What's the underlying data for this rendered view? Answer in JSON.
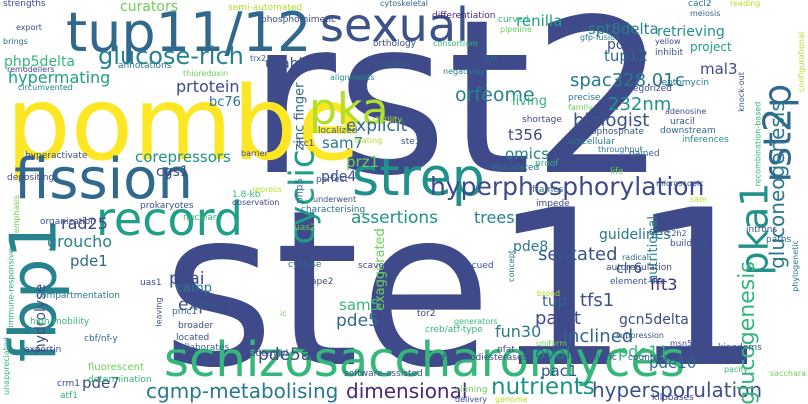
{
  "words": [
    {
      "text": "rst2",
      "color": "#3e4a89"
    },
    {
      "text": "ste11",
      "color": "#3e4a89"
    },
    {
      "text": "pombe",
      "color": "#fde725"
    },
    {
      "text": "fission",
      "color": "#31688e"
    },
    {
      "text": "schizosaccharomyces",
      "color": "#35b779"
    },
    {
      "text": "tup11/12",
      "color": "#31688e"
    },
    {
      "text": "sexual",
      "color": "#3b528b"
    },
    {
      "text": "fbp1",
      "color": "#26828e"
    },
    {
      "text": "strep",
      "color": "#21918c"
    },
    {
      "text": "record",
      "color": "#1f9e89"
    },
    {
      "text": "pka",
      "color": "#b5de2b"
    },
    {
      "text": "pka1",
      "color": "#21918c"
    },
    {
      "text": "rst2p",
      "color": "#31688e"
    },
    {
      "text": "cyclic",
      "color": "#1f9e89"
    },
    {
      "text": "glucose-rich",
      "color": "#26828e"
    },
    {
      "text": "hyperphosphorylation",
      "color": "#3e4a89"
    },
    {
      "text": "cgmp-metabolising",
      "color": "#2a788e"
    },
    {
      "text": "dimensional",
      "color": "#482878"
    },
    {
      "text": "nutrients",
      "color": "#21918c"
    },
    {
      "text": "hypersporulation",
      "color": "#3b528b"
    },
    {
      "text": "gluconeogenesis",
      "color": "#2a788e"
    },
    {
      "text": "glucogenesis",
      "color": "#35b779"
    },
    {
      "text": "orfeome",
      "color": "#26828e"
    },
    {
      "text": "spac328.01c",
      "color": "#2a788e"
    },
    {
      "text": "232nm",
      "color": "#21918c"
    },
    {
      "text": "biologist",
      "color": "#3b528b"
    },
    {
      "text": "hypermating",
      "color": "#1f9e89"
    },
    {
      "text": "prtotein",
      "color": "#3e4a89"
    },
    {
      "text": "curators",
      "color": "#6ece58"
    },
    {
      "text": "renilla",
      "color": "#1f9e89"
    },
    {
      "text": "spt8delta",
      "color": "#26828e"
    },
    {
      "text": "pdes",
      "color": "#3b528b"
    },
    {
      "text": "retrieving",
      "color": "#21918c"
    },
    {
      "text": "project",
      "color": "#1f9e89"
    },
    {
      "text": "tup12",
      "color": "#31688e"
    },
    {
      "text": "mal3",
      "color": "#3e4a89"
    },
    {
      "text": "usable",
      "color": "#3b528b"
    },
    {
      "text": "php5delta",
      "color": "#35b779"
    },
    {
      "text": "bc76",
      "color": "#2a788e"
    },
    {
      "text": "explicit",
      "color": "#31688e"
    },
    {
      "text": "assertions",
      "color": "#21918c"
    },
    {
      "text": "trees",
      "color": "#26828e"
    },
    {
      "text": "septated",
      "color": "#3b528b"
    },
    {
      "text": "paint",
      "color": "#3e4a89"
    },
    {
      "text": "inclined",
      "color": "#31688e"
    },
    {
      "text": "oval",
      "color": "#2a788e"
    },
    {
      "text": "expert",
      "color": "#3b528b"
    },
    {
      "text": "pkai",
      "color": "#3e4a89"
    },
    {
      "text": "pde5",
      "color": "#31688e"
    },
    {
      "text": "pde5a",
      "color": "#3e4a89"
    },
    {
      "text": "tfs1",
      "color": "#3b528b"
    },
    {
      "text": "fun30",
      "color": "#2a788e"
    },
    {
      "text": "tup",
      "color": "#31688e"
    },
    {
      "text": "fft3",
      "color": "#482878"
    },
    {
      "text": "pde11",
      "color": "#35b779"
    },
    {
      "text": "pde10",
      "color": "#31688e"
    },
    {
      "text": "pac1",
      "color": "#3b528b"
    },
    {
      "text": "groucho",
      "color": "#26828e"
    },
    {
      "text": "rad25",
      "color": "#3e4a89"
    },
    {
      "text": "corepressors",
      "color": "#21918c"
    },
    {
      "text": "prz1",
      "color": "#6ece58"
    },
    {
      "text": "sam7",
      "color": "#2a788e"
    },
    {
      "text": "pde4",
      "color": "#3b528b"
    },
    {
      "text": "t356",
      "color": "#3e4a89"
    },
    {
      "text": "omics",
      "color": "#26828e"
    },
    {
      "text": "hydrolyse",
      "color": "#3b528b"
    },
    {
      "text": "pde7",
      "color": "#3e4a89"
    },
    {
      "text": "pde1",
      "color": "#31688e"
    },
    {
      "text": "pde8",
      "color": "#2a788e"
    },
    {
      "text": "sam5",
      "color": "#35b779"
    },
    {
      "text": "camp",
      "color": "#2a788e"
    },
    {
      "text": "cgs1",
      "color": "#3e4a89"
    },
    {
      "text": "zinc finger",
      "color": "#31688e"
    },
    {
      "text": "clr6",
      "color": "#3b528b"
    },
    {
      "text": "guidelines",
      "color": "#2a788e"
    },
    {
      "text": "nutritional",
      "color": "#26828e"
    },
    {
      "text": "exaggerated",
      "color": "#6ece58"
    },
    {
      "text": "gcn5delta",
      "color": "#3e4a89"
    },
    {
      "text": "living",
      "color": "#35b779"
    },
    {
      "text": "strengths",
      "color": "#3e4a89"
    },
    {
      "text": "semi-automated",
      "color": "#b5de2b"
    },
    {
      "text": "cytoskeletal",
      "color": "#31688e"
    },
    {
      "text": "differentiation",
      "color": "#482878"
    },
    {
      "text": "cacl2",
      "color": "#2a788e"
    },
    {
      "text": "meiosis",
      "color": "#31688e"
    },
    {
      "text": "reading",
      "color": "#b5de2b"
    },
    {
      "text": "phosphomimetic",
      "color": "#3e4a89"
    },
    {
      "text": "curved",
      "color": "#35b779"
    },
    {
      "text": "pipeline",
      "color": "#6ece58"
    },
    {
      "text": "bent",
      "color": "#3b528b"
    },
    {
      "text": "gfp-fusion",
      "color": "#2a788e"
    },
    {
      "text": "export",
      "color": "#3e4a89"
    },
    {
      "text": "brings",
      "color": "#31688e"
    },
    {
      "text": "remodellers",
      "color": "#3e4a89"
    },
    {
      "text": "annotations",
      "color": "#2a788e"
    },
    {
      "text": "thioredoxin",
      "color": "#6ece58"
    },
    {
      "text": "trx2",
      "color": "#3b528b"
    },
    {
      "text": "orthology",
      "color": "#3e4a89"
    },
    {
      "text": "consortium",
      "color": "#35b779"
    },
    {
      "text": "lost",
      "color": "#31688e"
    },
    {
      "text": "yellow",
      "color": "#3e4a89"
    },
    {
      "text": "inhibit",
      "color": "#3b528b"
    },
    {
      "text": "leptomycin",
      "color": "#2a788e"
    },
    {
      "text": "configurational",
      "color": "#b5de2b"
    },
    {
      "text": "knock-out",
      "color": "#3b528b"
    },
    {
      "text": "alignments",
      "color": "#21918c"
    },
    {
      "text": "negatively",
      "color": "#26828e"
    },
    {
      "text": "nucleus",
      "color": "#31688e"
    },
    {
      "text": "categorized",
      "color": "#3e4a89"
    },
    {
      "text": "precise",
      "color": "#2a788e"
    },
    {
      "text": "family",
      "color": "#6ece58"
    },
    {
      "text": "circumvented",
      "color": "#26828e"
    },
    {
      "text": "adenosine",
      "color": "#3e4a89"
    },
    {
      "text": "uracil",
      "color": "#3b528b"
    },
    {
      "text": "downstream",
      "color": "#31688e"
    },
    {
      "text": "recombination-based",
      "color": "#35b779"
    },
    {
      "text": "shortage",
      "color": "#3e4a89"
    },
    {
      "text": "monophosphate",
      "color": "#3b528b"
    },
    {
      "text": "throughput",
      "color": "#2a788e"
    },
    {
      "text": "inferences",
      "color": "#21918c"
    },
    {
      "text": "localized",
      "color": "#31688e"
    },
    {
      "text": "sterility",
      "color": "#b5de2b"
    },
    {
      "text": "hyperactivate",
      "color": "#3e4a89"
    },
    {
      "text": "mating",
      "color": "#b5de2b"
    },
    {
      "text": "ste11p",
      "color": "#3b528b"
    },
    {
      "text": "unicellular",
      "color": "#2a788e"
    },
    {
      "text": "gained",
      "color": "#31688e"
    },
    {
      "text": "ikc1",
      "color": "#3e4a89"
    },
    {
      "text": "proof",
      "color": "#35b779"
    },
    {
      "text": "barrier",
      "color": "#3e4a89"
    },
    {
      "text": "1.8-kb",
      "color": "#35b779"
    },
    {
      "text": "life",
      "color": "#6ece58"
    },
    {
      "text": "microscopic",
      "color": "#3b528b"
    },
    {
      "text": "depositing",
      "color": "#3e4a89"
    },
    {
      "text": "php5",
      "color": "#31688e"
    },
    {
      "text": "perfect",
      "color": "#3b528b"
    },
    {
      "text": "underwent",
      "color": "#3e4a89"
    },
    {
      "text": "elucidated",
      "color": "#2a788e"
    },
    {
      "text": "frames",
      "color": "#31688e"
    },
    {
      "text": "sam",
      "color": "#b5de2b"
    },
    {
      "text": "emphasis",
      "color": "#6ece58"
    },
    {
      "text": "repress",
      "color": "#b5de2b"
    },
    {
      "text": "characterising",
      "color": "#2a788e"
    },
    {
      "text": "impede",
      "color": "#3e4a89"
    },
    {
      "text": "prokaryotes",
      "color": "#3b528b"
    },
    {
      "text": "observation",
      "color": "#3e4a89"
    },
    {
      "text": "organization",
      "color": "#3e4a89"
    },
    {
      "text": "nuclear",
      "color": "#35b779"
    },
    {
      "text": "uas2",
      "color": "#6ece58"
    },
    {
      "text": "element-like",
      "color": "#3b528b"
    },
    {
      "text": "rad24",
      "color": "#3e4a89"
    },
    {
      "text": "c2h2",
      "color": "#3e4a89"
    },
    {
      "text": "building",
      "color": "#3b528b"
    },
    {
      "text": "introns",
      "color": "#3b528b"
    },
    {
      "text": "paths",
      "color": "#31688e"
    },
    {
      "text": "phylogenetic",
      "color": "#2a788e"
    },
    {
      "text": "immune-responsive",
      "color": "#35b779"
    },
    {
      "text": "spt8",
      "color": "#3e4a89"
    },
    {
      "text": "cyclase",
      "color": "#31688e"
    },
    {
      "text": "scavenger",
      "color": "#3e4a89"
    },
    {
      "text": "rescued",
      "color": "#3b528b"
    },
    {
      "text": "concept",
      "color": "#2a788e"
    },
    {
      "text": "autoregulation",
      "color": "#3e4a89"
    },
    {
      "text": "radical",
      "color": "#31688e"
    },
    {
      "text": "compartmentation",
      "color": "#2a788e"
    },
    {
      "text": "uas1",
      "color": "#3e4a89"
    },
    {
      "text": "pmc1",
      "color": "#31688e"
    },
    {
      "text": "high-mobility",
      "color": "#35b779"
    },
    {
      "text": "ic",
      "color": "#6ece58"
    },
    {
      "text": "ape2",
      "color": "#3e4a89"
    },
    {
      "text": "cbf/nf-y",
      "color": "#31688e"
    },
    {
      "text": "leaving",
      "color": "#3b528b"
    },
    {
      "text": "broader",
      "color": "#3e4a89"
    },
    {
      "text": "located",
      "color": "#3b528b"
    },
    {
      "text": "nfat",
      "color": "#3b528b"
    },
    {
      "text": "tor2",
      "color": "#3e4a89"
    },
    {
      "text": "creb/atf-type",
      "color": "#35b779"
    },
    {
      "text": "broad",
      "color": "#b5de2b"
    },
    {
      "text": "uniform",
      "color": "#6ece58"
    },
    {
      "text": "suppression",
      "color": "#3b528b"
    },
    {
      "text": "msn5",
      "color": "#3e4a89"
    },
    {
      "text": "kingdoms",
      "color": "#3b528b"
    },
    {
      "text": "nitric",
      "color": "#3e4a89"
    },
    {
      "text": "counteractive",
      "color": "#3b528b"
    },
    {
      "text": "phosphodiesterases",
      "color": "#3e4a89"
    },
    {
      "text": "collaborates",
      "color": "#31688e"
    },
    {
      "text": "adenylyl",
      "color": "#3e4a89"
    },
    {
      "text": "software-assisted",
      "color": "#3b528b"
    },
    {
      "text": "exportin",
      "color": "#3e4a89"
    },
    {
      "text": "fluorescent",
      "color": "#6ece58"
    },
    {
      "text": "unappreciated",
      "color": "#35b779"
    },
    {
      "text": "determination",
      "color": "#35b779"
    },
    {
      "text": "crm1",
      "color": "#3e4a89"
    },
    {
      "text": "atf1",
      "color": "#35b779"
    },
    {
      "text": "cloning",
      "color": "#6ece58"
    },
    {
      "text": "delivery",
      "color": "#3b528b"
    },
    {
      "text": "genome",
      "color": "#b5de2b"
    },
    {
      "text": "kilobases",
      "color": "#3e4a89"
    },
    {
      "text": "pacify",
      "color": "#35b779"
    },
    {
      "text": "sacchara",
      "color": "#6ece58"
    },
    {
      "text": "generators",
      "color": "#35b779"
    }
  ]
}
